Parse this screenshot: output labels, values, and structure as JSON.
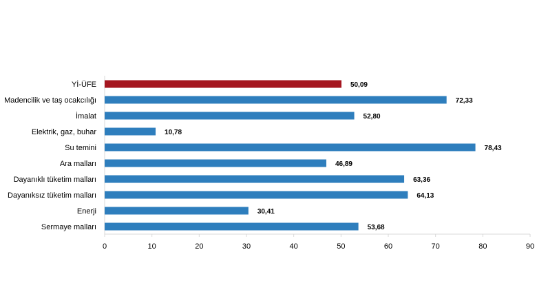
{
  "chart_data": {
    "type": "bar",
    "orientation": "horizontal",
    "categories": [
      "Yİ-ÜFE",
      "Madencilik ve taş ocakcılığı",
      "İmalat",
      "Elektrik, gaz, buhar",
      "Su temini",
      "Ara malları",
      "Dayanıklı tüketim malları",
      "Dayanıksız tüketim malları",
      "Enerji",
      "Sermaye malları"
    ],
    "values": [
      50.09,
      72.33,
      52.8,
      10.78,
      78.43,
      46.89,
      63.36,
      64.13,
      30.41,
      53.68
    ],
    "value_labels": [
      "50,09",
      "72,33",
      "52,80",
      "10,78",
      "78,43",
      "46,89",
      "63,36",
      "64,13",
      "30,41",
      "53,68"
    ],
    "colors": [
      "#a5161f",
      "#2e7ebd",
      "#2e7ebd",
      "#2e7ebd",
      "#2e7ebd",
      "#2e7ebd",
      "#2e7ebd",
      "#2e7ebd",
      "#2e7ebd",
      "#2e7ebd"
    ],
    "title": "",
    "xlabel": "",
    "ylabel": "",
    "xlim": [
      0,
      90
    ],
    "xticks": [
      0,
      10,
      20,
      30,
      40,
      50,
      60,
      70,
      80,
      90
    ],
    "grid": false,
    "legend": "none"
  }
}
